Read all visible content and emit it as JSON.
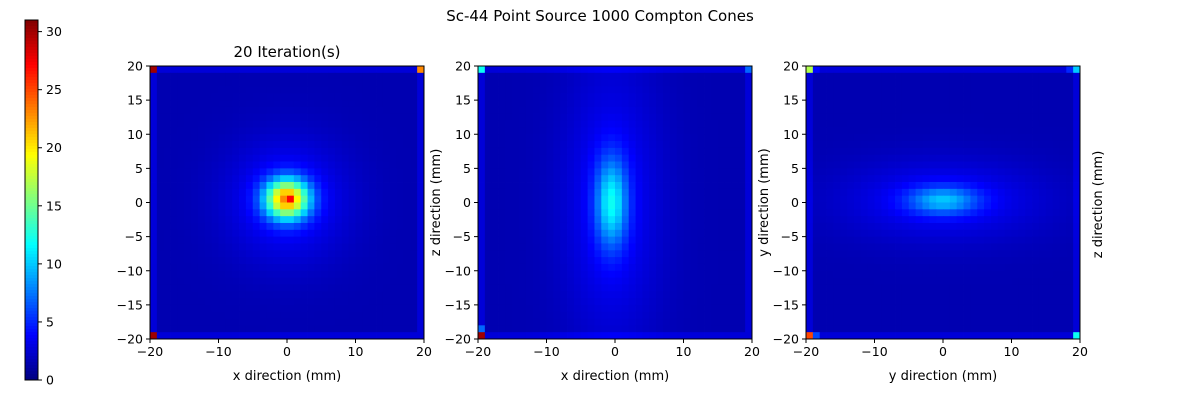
{
  "figure": {
    "title": "Sc-44 Point Source 1000 Compton Cones"
  },
  "chart_data": [
    {
      "type": "heatmap",
      "title": "20 Iteration(s)",
      "xlabel": "x direction (mm)",
      "ylabel": "",
      "xlim": [
        -20,
        20
      ],
      "ylim": [
        -20,
        20
      ],
      "xticks": [
        "−20",
        "−10",
        "0",
        "10",
        "20"
      ],
      "yticks": [
        "20",
        "15",
        "10",
        "5",
        "0",
        "−5",
        "−10",
        "−15",
        "−20"
      ],
      "grid": "40x40",
      "blobs": [
        {
          "x": 0,
          "y": 0.5,
          "sx": 2.2,
          "sy": 2.0,
          "amp": 19
        },
        {
          "x": 0,
          "y": 0.3,
          "sx": 6,
          "sy": 6,
          "amp": 3
        }
      ],
      "hotspots": [
        {
          "x": -19.5,
          "y": 19.5,
          "v": 30
        },
        {
          "x": 19.5,
          "y": 19.5,
          "v": 23
        },
        {
          "x": -19.5,
          "y": -19.5,
          "v": 30
        },
        {
          "x": 0,
          "y": 0.5,
          "v": 27
        }
      ],
      "background": 1.5
    },
    {
      "type": "heatmap",
      "title": "",
      "xlabel": "x direction (mm)",
      "ylabel": "z direction (mm)",
      "xlim": [
        -20,
        20
      ],
      "ylim": [
        -20,
        20
      ],
      "xticks": [
        "−20",
        "−10",
        "0",
        "10",
        "20"
      ],
      "yticks": [
        "20",
        "15",
        "10",
        "5",
        "0",
        "−5",
        "−10",
        "−15",
        "−20"
      ],
      "grid": "40x40",
      "blobs": [
        {
          "x": -0.5,
          "y": 0,
          "sx": 1.6,
          "sy": 4.5,
          "amp": 8
        },
        {
          "x": -0.5,
          "y": 0,
          "sx": 5,
          "sy": 14,
          "amp": 2.5
        }
      ],
      "hotspots": [
        {
          "x": -19.5,
          "y": 19.5,
          "v": 12
        },
        {
          "x": 19.5,
          "y": 19.5,
          "v": 7
        },
        {
          "x": -19.5,
          "y": -18.5,
          "v": 7
        },
        {
          "x": -19.5,
          "y": -19.5,
          "v": 30
        }
      ],
      "background": 1.5
    },
    {
      "type": "heatmap",
      "title": "",
      "xlabel": "y direction (mm)",
      "ylabel": "y direction (mm)",
      "right_label": "z direction (mm)",
      "xlim": [
        -20,
        20
      ],
      "ylim": [
        -20,
        20
      ],
      "xticks": [
        "−20",
        "−10",
        "0",
        "10",
        "20"
      ],
      "yticks": [
        "20",
        "15",
        "10",
        "5",
        "0",
        "−5",
        "−10",
        "−15",
        "−20"
      ],
      "grid": "40x40",
      "blobs": [
        {
          "x": 0,
          "y": 0.3,
          "sx": 3.5,
          "sy": 1.4,
          "amp": 6
        },
        {
          "x": 0,
          "y": 0.3,
          "sx": 10,
          "sy": 4,
          "amp": 2.5
        }
      ],
      "hotspots": [
        {
          "x": -19.5,
          "y": 19.5,
          "v": 17
        },
        {
          "x": -18.5,
          "y": 19.5,
          "v": 4
        },
        {
          "x": 18.5,
          "y": 19.5,
          "v": 5
        },
        {
          "x": 19.5,
          "y": 19.5,
          "v": 10
        },
        {
          "x": -19.5,
          "y": -19.5,
          "v": 25
        },
        {
          "x": -18.5,
          "y": -19.5,
          "v": 6
        },
        {
          "x": 19.5,
          "y": -19.5,
          "v": 12
        }
      ],
      "background": 1.5
    }
  ],
  "colorbar": {
    "colormap": "jet",
    "range": [
      0,
      31
    ],
    "ticks": [
      "0",
      "5",
      "10",
      "15",
      "20",
      "25",
      "30"
    ]
  }
}
